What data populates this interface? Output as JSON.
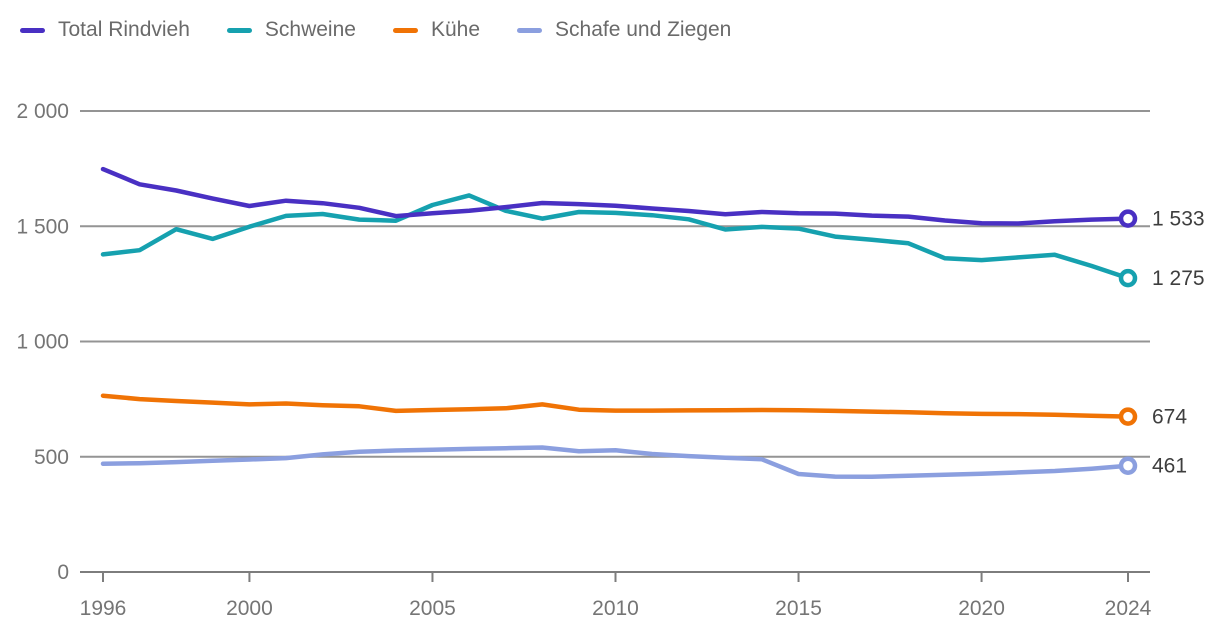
{
  "chart_data": {
    "type": "line",
    "title": "",
    "xlabel": "",
    "ylabel": "",
    "grid": true,
    "legend_position": "top-left",
    "xlim": [
      1996,
      2024
    ],
    "ylim": [
      0,
      2000
    ],
    "x_tick_values": [
      1996,
      2000,
      2005,
      2010,
      2015,
      2020,
      2024
    ],
    "x_tick_labels": [
      "1996",
      "2000",
      "2005",
      "2010",
      "2015",
      "2020",
      "2024"
    ],
    "y_tick_values": [
      0,
      500,
      1000,
      1500,
      2000
    ],
    "y_tick_labels": [
      "0",
      "500",
      "1 000",
      "1 500",
      "2 000"
    ],
    "x": [
      1996,
      1997,
      1998,
      1999,
      2000,
      2001,
      2002,
      2003,
      2004,
      2005,
      2006,
      2007,
      2008,
      2009,
      2010,
      2011,
      2012,
      2013,
      2014,
      2015,
      2016,
      2017,
      2018,
      2019,
      2020,
      2021,
      2022,
      2023,
      2024
    ],
    "series": [
      {
        "name": "Total Rindvieh",
        "color": "#4930c3",
        "end_label": "1 533",
        "values": [
          1748,
          1682,
          1655,
          1620,
          1588,
          1611,
          1600,
          1580,
          1544,
          1556,
          1567,
          1583,
          1601,
          1596,
          1589,
          1577,
          1566,
          1552,
          1562,
          1556,
          1555,
          1546,
          1542,
          1525,
          1513,
          1512,
          1522,
          1529,
          1533
        ]
      },
      {
        "name": "Schweine",
        "color": "#16a1af",
        "end_label": "1 275",
        "values": [
          1378,
          1396,
          1487,
          1445,
          1498,
          1545,
          1553,
          1529,
          1524,
          1592,
          1634,
          1567,
          1533,
          1562,
          1558,
          1548,
          1530,
          1486,
          1497,
          1490,
          1455,
          1441,
          1426,
          1361,
          1353,
          1365,
          1376,
          1328,
          1275
        ]
      },
      {
        "name": "Kühe",
        "color": "#f07305",
        "end_label": "674",
        "values": [
          765,
          750,
          742,
          735,
          727,
          731,
          723,
          719,
          699,
          703,
          706,
          710,
          727,
          704,
          700,
          700,
          701,
          702,
          703,
          702,
          699,
          696,
          693,
          689,
          686,
          685,
          682,
          678,
          674
        ]
      },
      {
        "name": "Schafe und Ziegen",
        "color": "#8b9fdf",
        "end_label": "461",
        "values": [
          470,
          472,
          477,
          483,
          488,
          494,
          510,
          522,
          527,
          530,
          534,
          537,
          540,
          524,
          528,
          512,
          503,
          496,
          489,
          425,
          414,
          413,
          418,
          422,
          426,
          432,
          438,
          448,
          461
        ]
      }
    ]
  },
  "colors": {
    "background": "#ffffff",
    "grid": "#949494",
    "axis": "#7d7d7d",
    "tick_label": "#757575",
    "end_label": "#3e3e3e",
    "legend_text": "#6a6a6a"
  }
}
